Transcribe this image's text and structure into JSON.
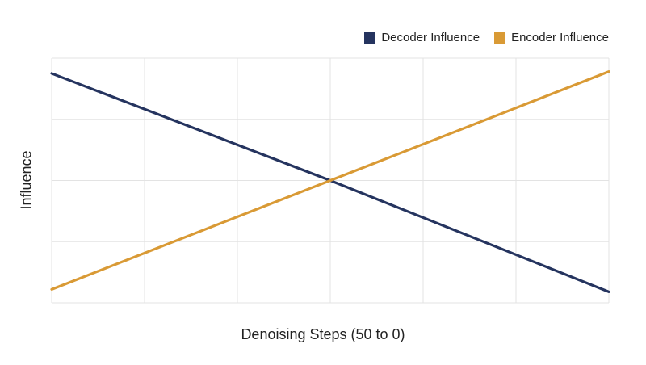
{
  "chart_data": {
    "type": "line",
    "title": "",
    "xlabel": "Denoising Steps (50 to 0)",
    "ylabel": "Influence",
    "xlim": [
      0,
      6
    ],
    "ylim": [
      0,
      4
    ],
    "grid": true,
    "legend_position": "top-right",
    "series": [
      {
        "name": "Decoder Influence",
        "color": "#25345f",
        "x": [
          0,
          3,
          6
        ],
        "y": [
          3.75,
          2.0,
          0.18
        ]
      },
      {
        "name": "Encoder Influence",
        "color": "#d99a35",
        "x": [
          0,
          3,
          6
        ],
        "y": [
          0.22,
          2.0,
          3.78
        ]
      }
    ]
  },
  "legend": {
    "items": [
      {
        "label": "Decoder Influence",
        "color": "#25345f"
      },
      {
        "label": "Encoder Influence",
        "color": "#d99a35"
      }
    ]
  }
}
